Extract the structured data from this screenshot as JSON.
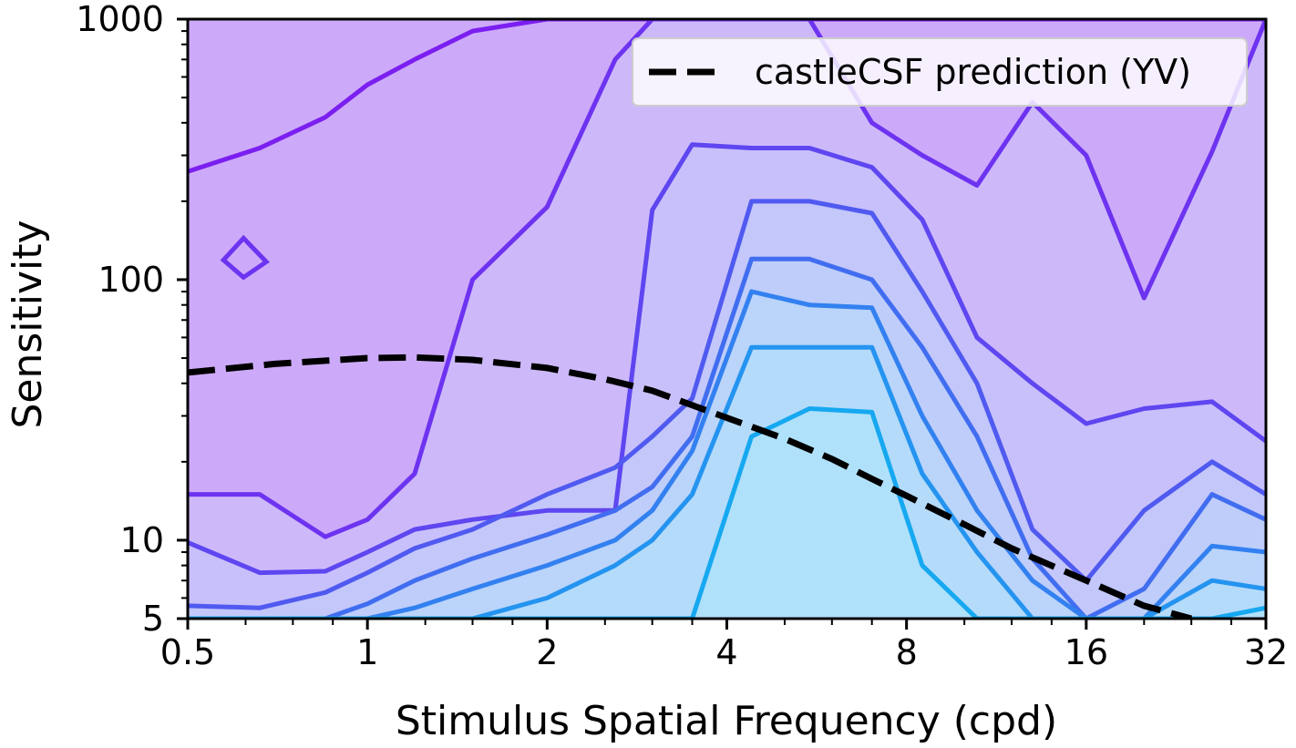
{
  "chart_data": {
    "type": "contour",
    "xlabel": "Stimulus Spatial Frequency (cpd)",
    "ylabel": "Sensitivity",
    "x_scale": "log2",
    "y_scale": "log10",
    "xlim": [
      0.5,
      32
    ],
    "ylim": [
      5,
      1000
    ],
    "x_ticks": [
      {
        "value": 0.5,
        "label": "0.5"
      },
      {
        "value": 1,
        "label": "1"
      },
      {
        "value": 2,
        "label": "2"
      },
      {
        "value": 4,
        "label": "4"
      },
      {
        "value": 8,
        "label": "8"
      },
      {
        "value": 16,
        "label": "16"
      },
      {
        "value": 32,
        "label": "32"
      }
    ],
    "y_ticks": [
      {
        "value": 5,
        "label": "5"
      },
      {
        "value": 10,
        "label": "10"
      },
      {
        "value": 100,
        "label": "100"
      },
      {
        "value": 1000,
        "label": "1000"
      }
    ],
    "grid": false,
    "legend_position": "top-right",
    "legend_entries": [
      {
        "label": "castleCSF prediction (YV)",
        "style": "dashed",
        "color": "#000000"
      }
    ],
    "colors": {
      "low_level": "#7b1ff0",
      "high_level": "#16a8f0",
      "background": "#ffffff"
    },
    "prediction_line": {
      "name": "castleCSF prediction (YV)",
      "x": [
        0.5,
        0.7,
        1.0,
        1.2,
        1.5,
        2.0,
        2.5,
        3.0,
        4.0,
        5.0,
        6.0,
        7.0,
        8.0,
        10.0,
        12.0,
        16.0,
        20.0,
        24.0
      ],
      "y": [
        44,
        47.5,
        50,
        50.3,
        49.2,
        45.8,
        41.5,
        37.5,
        29.5,
        24.5,
        20.5,
        17.2,
        14.8,
        11.5,
        9.3,
        7.0,
        5.6,
        5.0
      ]
    },
    "filled_regions": [
      {
        "x": [
          0.5,
          0.66,
          0.85,
          1.0,
          1.2,
          1.5,
          2.0,
          2.6,
          3.0,
          3.5,
          4.4,
          5.5,
          7.0,
          8.5,
          10.5,
          13,
          16,
          20,
          26,
          32
        ],
        "y": [
          5,
          5,
          5,
          5,
          5,
          5,
          5,
          5,
          5,
          5,
          5,
          5,
          5,
          5,
          5,
          5,
          5,
          5,
          5,
          5
        ]
      },
      {
        "x": [
          0.5,
          0.66,
          0.85,
          1.0,
          1.2,
          1.5,
          2.0,
          2.6,
          3.0,
          3.5,
          4.4,
          5.5,
          7.0,
          8.5,
          10.5,
          13,
          16,
          20,
          26,
          32
        ],
        "y": [
          1000,
          860,
          1000,
          1000,
          1000,
          1000,
          1000,
          1000,
          1000,
          1000,
          1000,
          1000,
          1000,
          1000,
          1000,
          1000,
          1000,
          1000,
          1000,
          1000
        ]
      },
      {
        "x": [
          0.5,
          0.66,
          0.85,
          1.0,
          1.2,
          1.5,
          2.0,
          2.6,
          3.0,
          3.5,
          4.4,
          5.5,
          7.0,
          8.5,
          10.5,
          13,
          16,
          20,
          26,
          32
        ],
        "y": [
          260,
          320,
          420,
          560,
          700,
          900,
          1000,
          1000,
          1000,
          1000,
          1000,
          1000,
          1000,
          1000,
          1000,
          1000,
          1000,
          1000,
          1000,
          1000
        ]
      },
      {
        "x": [
          0.5,
          0.66,
          0.85,
          1.0,
          1.2,
          1.5,
          2.0,
          2.6,
          3.0,
          3.5,
          4.4,
          5.5,
          7.0,
          8.5,
          10.5,
          13,
          16,
          20,
          26,
          32
        ],
        "y": [
          15,
          15,
          10.3,
          12,
          18,
          100,
          190,
          700,
          1000,
          1000,
          1000,
          1000,
          400,
          300,
          230,
          480,
          300,
          85,
          310,
          1000
        ]
      },
      {
        "x": [
          0.5,
          0.66,
          0.85,
          1.0,
          1.2,
          1.5,
          2.0,
          2.6,
          3.0,
          3.5,
          4.4,
          5.5,
          7.0,
          8.5,
          10.5,
          13,
          16,
          20,
          26,
          32
        ],
        "y": [
          9.8,
          7.5,
          7.6,
          9,
          11,
          12,
          13,
          13,
          185,
          330,
          320,
          320,
          270,
          170,
          60,
          40,
          28,
          32,
          34,
          24
        ]
      },
      {
        "x": [
          0.5,
          0.66,
          0.85,
          1.0,
          1.2,
          1.5,
          2.0,
          2.6,
          3.0,
          3.5,
          4.4,
          5.5,
          7.0,
          8.5,
          10.5,
          13,
          16,
          20,
          26,
          32
        ],
        "y": [
          5.6,
          5.5,
          6.3,
          7.5,
          9.3,
          11,
          15,
          19,
          25,
          35,
          200,
          200,
          180,
          90,
          40,
          11,
          7,
          13,
          20,
          15
        ]
      },
      {
        "x": [
          0.5,
          0.66,
          0.85,
          1.0,
          1.2,
          1.5,
          2.0,
          2.6,
          3.0,
          3.5,
          4.4,
          5.5,
          7.0,
          8.5,
          10.5,
          13,
          16,
          20,
          26,
          32
        ],
        "y": [
          5,
          5,
          5,
          5.7,
          7,
          8.5,
          10.5,
          13,
          16,
          25,
          120,
          120,
          100,
          55,
          25,
          8.5,
          5,
          6.5,
          15,
          12
        ]
      },
      {
        "x": [
          0.5,
          0.66,
          0.85,
          1.0,
          1.2,
          1.5,
          2.0,
          2.6,
          3.0,
          3.5,
          4.4,
          5.5,
          7.0,
          8.5,
          10.5,
          13,
          16,
          20,
          26,
          32
        ],
        "y": [
          5,
          5,
          5,
          5,
          5.5,
          6.5,
          8,
          10,
          13,
          22,
          90,
          80,
          78,
          30,
          13,
          7,
          5,
          5,
          9.5,
          9
        ]
      },
      {
        "x": [
          0.5,
          0.66,
          0.85,
          1.0,
          1.2,
          1.5,
          2.0,
          2.6,
          3.0,
          3.5,
          4.4,
          5.5,
          7.0,
          8.5,
          10.5,
          13,
          16,
          20,
          26,
          32
        ],
        "y": [
          5,
          5,
          5,
          5,
          5,
          5,
          6,
          8,
          10,
          15,
          55,
          55,
          55,
          18,
          9,
          5,
          5,
          5,
          7,
          6.5
        ]
      },
      {
        "x": [
          0.5,
          0.66,
          0.85,
          1.0,
          1.2,
          1.5,
          2.0,
          2.6,
          3.0,
          3.5,
          4.4,
          5.5,
          7.0,
          8.5,
          10.5,
          13,
          16,
          20,
          26,
          32
        ],
        "y": [
          5,
          5,
          5,
          5,
          5,
          5,
          5,
          5,
          5,
          5,
          25,
          32,
          31,
          8,
          5,
          5,
          5,
          5,
          5,
          5.5
        ]
      }
    ]
  }
}
